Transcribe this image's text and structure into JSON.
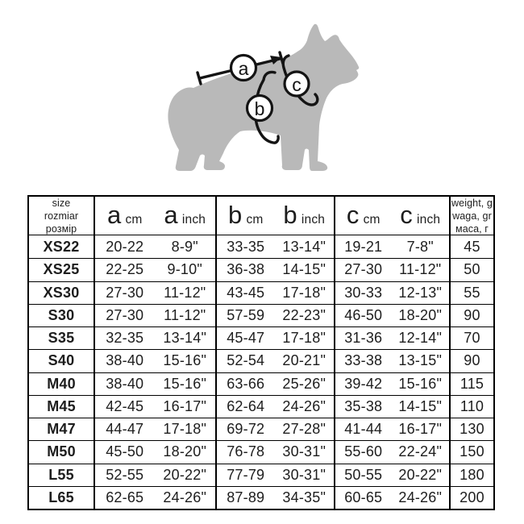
{
  "diagram": {
    "dog_color": "#b9b9b9",
    "line_color": "#141414",
    "labels": {
      "a": "a",
      "b": "b",
      "c": "c"
    }
  },
  "table": {
    "header": {
      "size": [
        "size",
        "rozmiar",
        "розмір"
      ],
      "weight": [
        "weight, g",
        "waga, gr",
        "маса, г"
      ],
      "a": "a",
      "b": "b",
      "c": "c",
      "cm": "cm",
      "inch": "inch"
    },
    "rows": [
      {
        "size": "XS22",
        "a_cm": "20-22",
        "a_inch": "8-9\"",
        "b_cm": "33-35",
        "b_inch": "13-14\"",
        "c_cm": "19-21",
        "c_inch": "7-8\"",
        "weight": "45"
      },
      {
        "size": "XS25",
        "a_cm": "22-25",
        "a_inch": "9-10\"",
        "b_cm": "36-38",
        "b_inch": "14-15\"",
        "c_cm": "27-30",
        "c_inch": "11-12\"",
        "weight": "50"
      },
      {
        "size": "XS30",
        "a_cm": "27-30",
        "a_inch": "11-12\"",
        "b_cm": "43-45",
        "b_inch": "17-18\"",
        "c_cm": "30-33",
        "c_inch": "12-13\"",
        "weight": "55"
      },
      {
        "size": "S30",
        "a_cm": "27-30",
        "a_inch": "11-12\"",
        "b_cm": "57-59",
        "b_inch": "22-23\"",
        "c_cm": "46-50",
        "c_inch": "18-20\"",
        "weight": "90"
      },
      {
        "size": "S35",
        "a_cm": "32-35",
        "a_inch": "13-14\"",
        "b_cm": "45-47",
        "b_inch": "17-18\"",
        "c_cm": "31-36",
        "c_inch": "12-14\"",
        "weight": "70"
      },
      {
        "size": "S40",
        "a_cm": "38-40",
        "a_inch": "15-16\"",
        "b_cm": "52-54",
        "b_inch": "20-21\"",
        "c_cm": "33-38",
        "c_inch": "13-15\"",
        "weight": "90"
      },
      {
        "size": "M40",
        "a_cm": "38-40",
        "a_inch": "15-16\"",
        "b_cm": "63-66",
        "b_inch": "25-26\"",
        "c_cm": "39-42",
        "c_inch": "15-16\"",
        "weight": "115"
      },
      {
        "size": "M45",
        "a_cm": "42-45",
        "a_inch": "16-17\"",
        "b_cm": "62-64",
        "b_inch": "24-26\"",
        "c_cm": "35-38",
        "c_inch": "14-15\"",
        "weight": "110"
      },
      {
        "size": "M47",
        "a_cm": "44-47",
        "a_inch": "17-18\"",
        "b_cm": "69-72",
        "b_inch": "27-28\"",
        "c_cm": "41-44",
        "c_inch": "16-17\"",
        "weight": "130"
      },
      {
        "size": "M50",
        "a_cm": "45-50",
        "a_inch": "18-20\"",
        "b_cm": "76-78",
        "b_inch": "30-31\"",
        "c_cm": "55-60",
        "c_inch": "22-24\"",
        "weight": "150"
      },
      {
        "size": "L55",
        "a_cm": "52-55",
        "a_inch": "20-22\"",
        "b_cm": "77-79",
        "b_inch": "30-31\"",
        "c_cm": "50-55",
        "c_inch": "20-22\"",
        "weight": "180"
      },
      {
        "size": "L65",
        "a_cm": "62-65",
        "a_inch": "24-26\"",
        "b_cm": "87-89",
        "b_inch": "34-35\"",
        "c_cm": "60-65",
        "c_inch": "24-26\"",
        "weight": "200"
      }
    ]
  }
}
